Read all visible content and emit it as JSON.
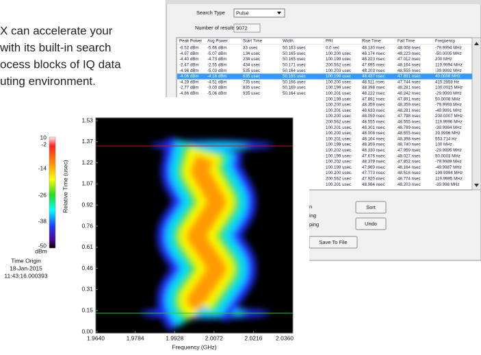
{
  "intro_text": [
    "X can accelerate your",
    "with its built-in search",
    "ocess blocks of IQ data",
    "uting environment."
  ],
  "dialog": {
    "search_type_label": "Search Type",
    "search_type_value": "Pulse",
    "results_label": "Number of results",
    "results_value": "9072",
    "columns": [
      "Peak Power",
      "Avg Power",
      "Start Time",
      "Width",
      "PRI",
      "Rise Time",
      "Fall Time",
      "Frequency"
    ],
    "rows": [
      [
        "-6.52 dBm",
        "-5.66 dBm",
        "33 usec",
        "50.163 usec",
        "0.0 sec",
        "48.130 nsec",
        "48.008 nsec",
        "-79.9994 MHz"
      ],
      [
        "-4.97 dBm",
        "-5.07 dBm",
        "134 usec",
        "50.165 usec",
        "100.200 usec",
        "48.174 nsec",
        "48.223 nsec",
        "-50.0005 MHz"
      ],
      [
        "-4.40 dBm",
        "-4.73 dBm",
        "234 usec",
        "50.165 usec",
        "100.199 usec",
        "48.223 nsec",
        "47.012 nsec",
        "200 MHz"
      ],
      [
        "-2.47 dBm",
        "-2.55 dBm",
        "434 usec",
        "50.171 usec",
        "200.562 usec",
        "47.695 nsec",
        "48.164 nsec",
        "119.9994 MHz"
      ],
      [
        "-4.96 dBm",
        "-5.03 dBm",
        "535 usec",
        "50.164 usec",
        "100.203 usec",
        "48.203 nsec",
        "48.555 nsec",
        "-39.9992 MHz"
      ],
      [
        "-4.06 dBm",
        "-4.16 dBm",
        "635 usec",
        "50.165 usec",
        "100.199 usec",
        "48.437 nsec",
        "47.891 nsec",
        "40.0008 MHz"
      ],
      [
        "-4.29 dBm",
        "-4.51 dBm",
        "735 usec",
        "50.166 usec",
        "100.200 usec",
        "48.511 nsec",
        "47.744 nsec",
        "415.2858 Hz"
      ],
      [
        "-2.77 dBm",
        "-3.00 dBm",
        "835 usec",
        "50.169 usec",
        "100.199 usec",
        "48.398 nsec",
        "48.281 nsec",
        "100.0015 MHz"
      ],
      [
        "-4.86 dBm",
        "-5.06 dBm",
        "935 usec",
        "50.164 usec",
        "100.201 usec",
        "48.222 nsec",
        "48.242 nsec",
        "-29.9993 MHz"
      ],
      [
        "-3.92 dBm",
        "-4.06 dBm",
        "1.036 msec",
        "50.167 usec",
        "100.199 usec",
        "47.891 nsec",
        "47.891 nsec",
        "50.0008 MHz"
      ],
      [
        "-5.53 dBm",
        "-5.66 dBm",
        "1.136 msec",
        "50.163 usec",
        "100.200 usec",
        "48.359 nsec",
        "48.359 nsec",
        "-79.9993 MHz"
      ],
      [
        "-4.97 dBm",
        "-5.07 dBm",
        "1.236 msec",
        "50.164 usec",
        "100.201 usec",
        "48.633 nsec",
        "48.281 nsec",
        "-49.9991 MHz"
      ]
    ],
    "partial_rows": [
      [
        "100.200 usec",
        "48.059 nsec",
        "47.798 nsec",
        "200.0007 MHz"
      ],
      [
        "200.562 usec",
        "48.555 nsec",
        "48.555 nsec",
        "119.9996 MHz"
      ],
      [
        "100.201 usec",
        "48.301 nsec",
        "48.789 nsec",
        "-39.9984 MHz"
      ],
      [
        "100.200 usec",
        "48.008 nsec",
        "48.555 nsec",
        "39.9996 MHz"
      ],
      [
        "100.201 usec",
        "48.164 nsec",
        "48.398 nsec",
        "553.714 Hz"
      ],
      [
        "100.199 usec",
        "48.359 nsec",
        "48.740 nsec",
        "100 MHz"
      ],
      [
        "100.202 usec",
        "48.330 nsec",
        "47.959 nsec",
        "-29.9995 MHz"
      ],
      [
        "100.199 usec",
        "47.676 nsec",
        "48.027 nsec",
        "50.0003 MHz"
      ],
      [
        "100.202 usec",
        "48.379 nsec",
        "47.852 nsec",
        "-79.9989 MHz"
      ],
      [
        "100.199 usec",
        "47.969 nsec",
        "48.164 nsec",
        "-49.9987 MHz"
      ],
      [
        "100.200 usec",
        "47.773 nsec",
        "48.516 nsec",
        "199.9994 MHz"
      ],
      [
        "200.562 usec",
        "47.920 nsec",
        "48.774 nsec",
        "119.9995 MHz"
      ],
      [
        "100.201 usec",
        "48.984 nsec",
        "48.203 nsec",
        "-39.998 MHz"
      ]
    ],
    "side_labels": [
      "n",
      "ing",
      "ping"
    ],
    "buttons": {
      "sort": "Sort",
      "undo": "Undo",
      "save": "Save To File"
    }
  },
  "spectrogram": {
    "colorbar_ticks": [
      "10",
      "-2",
      "-14",
      "-26",
      "-38",
      "-50"
    ],
    "colorbar_unit": "dBm",
    "y_label": "Relative Time (usec)",
    "y_ticks": [
      "0.00",
      "0.15",
      "0.31",
      "0.46",
      "0.61",
      "0.76",
      "0.92",
      "1.07",
      "1.22",
      "1.37",
      "1.53"
    ],
    "x_ticks": [
      "1.9640",
      "1.9784",
      "1.9928",
      "2.0072",
      "2.0216",
      "2.0360"
    ],
    "x_label": "Frequency (GHz)",
    "time_origin": [
      "Time Origin",
      "18-Jan-2015",
      "11:43:16.000393"
    ]
  }
}
